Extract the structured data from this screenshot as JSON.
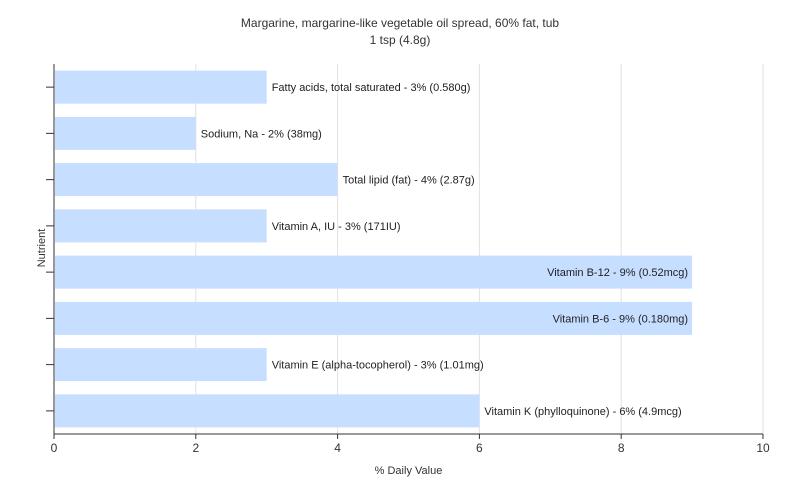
{
  "chart_data": {
    "type": "bar",
    "orientation": "horizontal",
    "title": "Margarine, margarine-like vegetable oil spread, 60% fat, tub",
    "subtitle": "1 tsp (4.8g)",
    "xlabel": "% Daily Value",
    "ylabel": "Nutrient",
    "xlim": [
      0,
      10
    ],
    "xticks": [
      0,
      2,
      4,
      6,
      8,
      10
    ],
    "grid": true,
    "bar_color": "#c6deff",
    "categories": [
      "Fatty acids, total saturated",
      "Sodium, Na",
      "Total lipid (fat)",
      "Vitamin A, IU",
      "Vitamin B-12",
      "Vitamin B-6",
      "Vitamin E (alpha-tocopherol)",
      "Vitamin K (phylloquinone)"
    ],
    "values": [
      3,
      2,
      4,
      3,
      9,
      9,
      3,
      6
    ],
    "labels": [
      "Fatty acids, total saturated - 3% (0.580g)",
      "Sodium, Na - 2% (38mg)",
      "Total lipid (fat) - 4% (2.87g)",
      "Vitamin A, IU - 3% (171IU)",
      "Vitamin B-12 - 9% (0.52mcg)",
      "Vitamin B-6 - 9% (0.180mg)",
      "Vitamin E (alpha-tocopherol) - 3% (1.01mg)",
      "Vitamin K (phylloquinone) - 6% (4.9mcg)"
    ]
  }
}
